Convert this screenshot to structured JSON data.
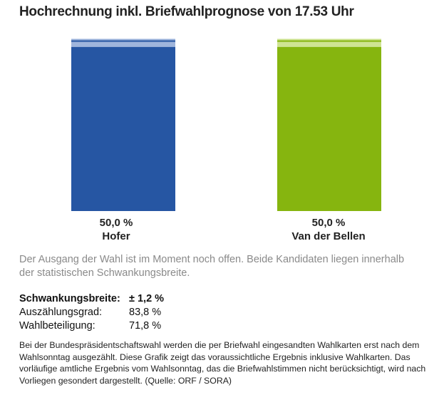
{
  "title": "Hochrechnung inkl. Briefwahlprognose von 17.53 Uhr",
  "chart_data": {
    "type": "bar",
    "categories": [
      "Hofer",
      "Van der Bellen"
    ],
    "values": [
      50.0,
      50.0
    ],
    "value_labels": [
      "50,0 %",
      "50,0 %"
    ],
    "uncertainty": 1.2,
    "ylim": [
      0,
      53
    ],
    "colors": [
      "#2656a3",
      "#86b50f"
    ],
    "band_colors": [
      "#9fb5dc",
      "#cfe493"
    ],
    "title": "Hochrechnung inkl. Briefwahlprognose von 17.53 Uhr",
    "xlabel": "",
    "ylabel": ""
  },
  "note": "Der Ausgang der Wahl ist im Moment noch offen. Beide Kandidaten liegen innerhalb der statistischen Schwankungsbreite.",
  "stats": [
    {
      "label": "Schwankungsbreite:",
      "value": "± 1,2 %"
    },
    {
      "label": "Auszählungsgrad:",
      "value": "83,8 %"
    },
    {
      "label": "Wahlbeteiligung:",
      "value": "71,8 %"
    }
  ],
  "footnote": "Bei der Bundespräsidentschaftswahl werden die per Briefwahl eingesandten Wahlkarten erst nach dem Wahlsonntag ausgezählt. Diese Grafik zeigt das voraussichtliche Ergebnis inklusive Wahlkarten. Das vorläufige amtliche Ergebnis vom Wahlsonntag, das die Briefwahlstimmen nicht berücksichtigt, wird nach Vorliegen gesondert dargestellt. (Quelle: ORF / SORA)"
}
